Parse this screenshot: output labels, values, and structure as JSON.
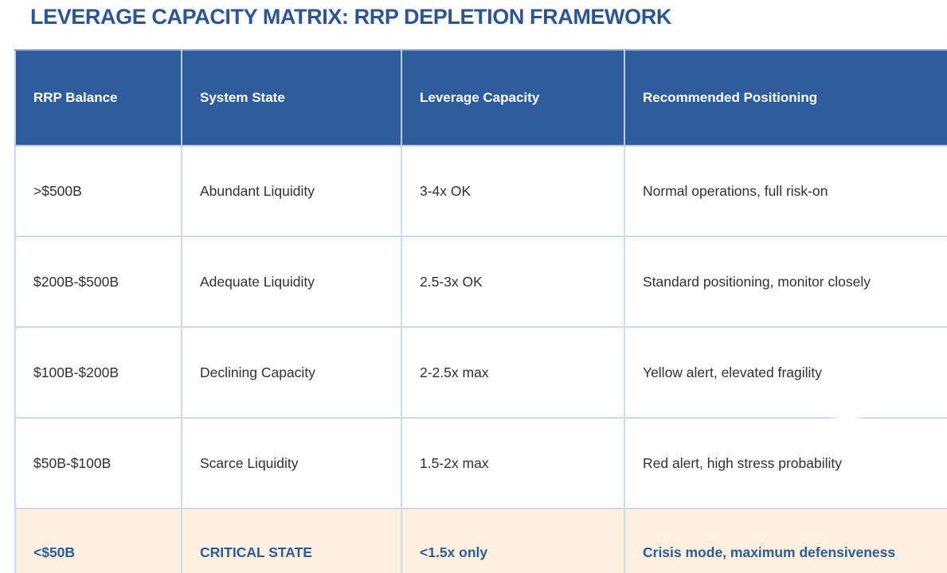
{
  "title": "LEVERAGE CAPACITY MATRIX: RRP DEPLETION FRAMEWORK",
  "colors": {
    "header_bg": "#2e5c9c",
    "header_text": "#ffffff",
    "title_text": "#2a5699",
    "cell_border": "#ccdcee",
    "critical_row_bg": "#fcefdd",
    "critical_row_text": "#2b5c9c",
    "body_text": "#303030",
    "page_bg": "#ffffff"
  },
  "table": {
    "headers": [
      "RRP Balance",
      "System State",
      "Leverage Capacity",
      "Recommended Positioning"
    ],
    "rows": [
      {
        "cells": [
          ">$500B",
          "Abundant Liquidity",
          "3-4x OK",
          "Normal operations, full risk-on"
        ]
      },
      {
        "cells": [
          "$200B-$500B",
          "Adequate Liquidity",
          "2.5-3x OK",
          "Standard positioning, monitor closely"
        ]
      },
      {
        "cells": [
          "$100B-$200B",
          "Declining Capacity",
          "2-2.5x max",
          "Yellow alert, elevated fragility"
        ]
      },
      {
        "cells": [
          "$50B-$100B",
          "Scarce Liquidity",
          "1.5-2x max",
          "Red alert, high stress probability"
        ]
      },
      {
        "cells": [
          "<$50B",
          "CRITICAL STATE",
          "<1.5x only",
          "Crisis mode, maximum defensiveness"
        ],
        "critical": true
      }
    ]
  }
}
